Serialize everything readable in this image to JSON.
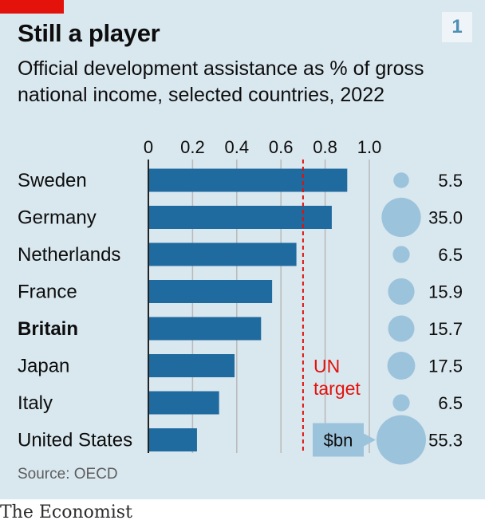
{
  "header": {
    "title": "Still a player",
    "subtitle": "Official development assistance as % of gross national income, selected countries, 2022",
    "chart_number": "1"
  },
  "source": "Source: OECD",
  "footer": "The Economist",
  "colors": {
    "background": "#d9e7ef",
    "bar": "#1f6a9e",
    "bubble": "#9cc3dc",
    "target_line": "#e3120b",
    "grid": "#b9b9b9",
    "brand_red": "#e3120b"
  },
  "chart_data": {
    "type": "bar",
    "orientation": "horizontal",
    "categories": [
      "Sweden",
      "Germany",
      "Netherlands",
      "France",
      "Britain",
      "Japan",
      "Italy",
      "United States"
    ],
    "highlight": "Britain",
    "values": [
      0.9,
      0.83,
      0.67,
      0.56,
      0.51,
      0.39,
      0.32,
      0.22
    ],
    "xlim": [
      0,
      1.0
    ],
    "xticks": [
      "0",
      "0.2",
      "0.4",
      "0.6",
      "0.8",
      "1.0"
    ],
    "reference_line": {
      "value": 0.7,
      "label_lines": [
        "UN",
        "target"
      ]
    },
    "bubbles": {
      "unit_label": "$bn",
      "values": [
        5.5,
        35.0,
        6.5,
        15.9,
        15.7,
        17.5,
        6.5,
        55.3
      ],
      "labels": [
        "5.5",
        "35.0",
        "6.5",
        "15.9",
        "15.7",
        "17.5",
        "6.5",
        "55.3"
      ]
    }
  }
}
